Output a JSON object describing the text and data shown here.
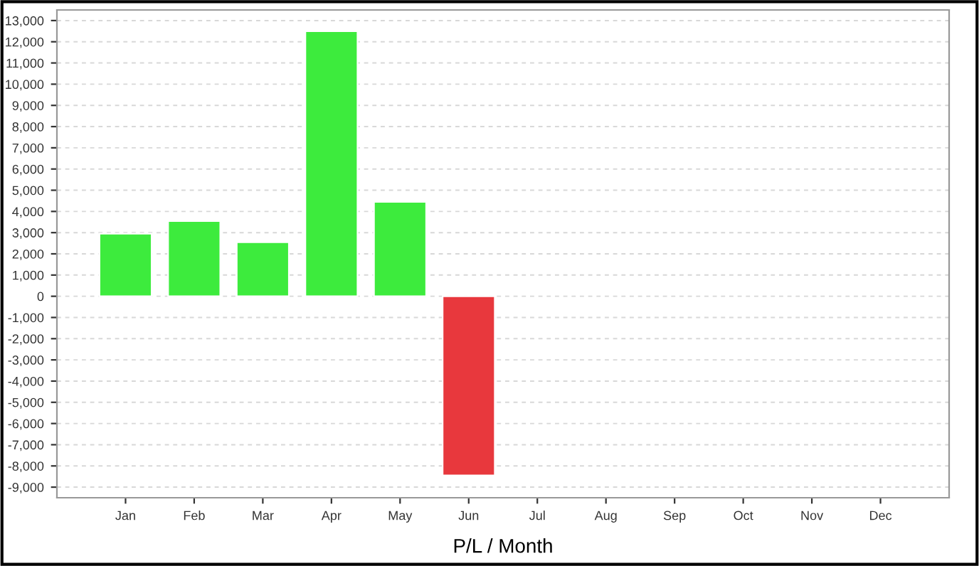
{
  "chart_data": {
    "type": "bar",
    "xlabel": "P/L / Month",
    "categories": [
      "Jan",
      "Feb",
      "Mar",
      "Apr",
      "May",
      "Jun",
      "Jul",
      "Aug",
      "Sep",
      "Oct",
      "Nov",
      "Dec"
    ],
    "values": [
      2950,
      3550,
      2550,
      12500,
      4450,
      -8450,
      null,
      null,
      null,
      null,
      null,
      null
    ],
    "colors": [
      "#3deb3d",
      "#3deb3d",
      "#3deb3d",
      "#3deb3d",
      "#3deb3d",
      "#e8383d",
      null,
      null,
      null,
      null,
      null,
      null
    ],
    "ylim": [
      -9500,
      13500
    ],
    "yticks": [
      {
        "value": -9000,
        "label": "-9,000"
      },
      {
        "value": -8000,
        "label": "-8,000"
      },
      {
        "value": -7000,
        "label": "-7,000"
      },
      {
        "value": -6000,
        "label": "-6,000"
      },
      {
        "value": -5000,
        "label": "-5,000"
      },
      {
        "value": -4000,
        "label": "-4,000"
      },
      {
        "value": -3000,
        "label": "-3,000"
      },
      {
        "value": -2000,
        "label": "-2,000"
      },
      {
        "value": -1000,
        "label": "-1,000"
      },
      0,
      {
        "value": 1000,
        "label": "1,000"
      },
      {
        "value": 2000,
        "label": "2,000"
      },
      {
        "value": 3000,
        "label": "3,000"
      },
      {
        "value": 4000,
        "label": "4,000"
      },
      {
        "value": 5000,
        "label": "5,000"
      },
      {
        "value": 6000,
        "label": "6,000"
      },
      {
        "value": 7000,
        "label": "7,000"
      },
      {
        "value": 8000,
        "label": "8,000"
      },
      {
        "value": 9000,
        "label": "9,000"
      },
      {
        "value": 10000,
        "label": "10,000"
      },
      {
        "value": 11000,
        "label": "11,000"
      },
      {
        "value": 12000,
        "label": "12,000"
      },
      {
        "value": 13000,
        "label": "13,000"
      }
    ],
    "grid": "y"
  }
}
